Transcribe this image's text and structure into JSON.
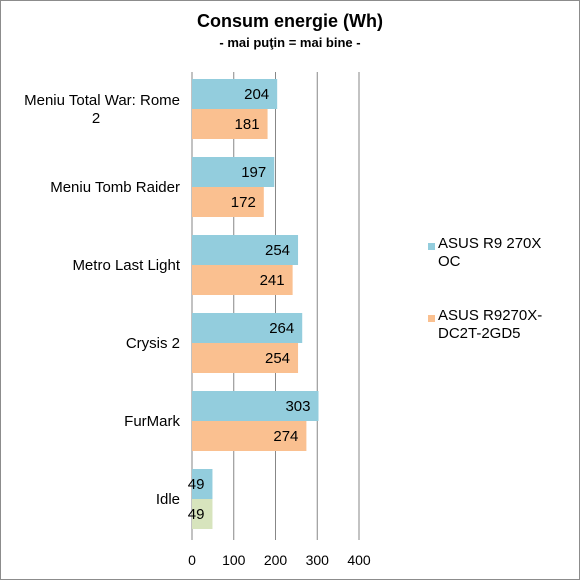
{
  "chart_data": {
    "type": "bar",
    "orientation": "horizontal",
    "title": "Consum energie (Wh)",
    "subtitle": "- mai puţin = mai bine -",
    "categories": [
      [
        "Meniu Total War: Rome",
        "2"
      ],
      [
        "Meniu Tomb Raider"
      ],
      [
        "Metro Last Light"
      ],
      [
        "Crysis 2"
      ],
      [
        "FurMark"
      ],
      [
        "Idle"
      ]
    ],
    "series": [
      {
        "name": [
          "ASUS R9 270X",
          "OC"
        ],
        "color": "#93cddd",
        "values": [
          204,
          197,
          254,
          264,
          303,
          49
        ]
      },
      {
        "name": [
          "ASUS R9270X-",
          "DC2T-2GD5"
        ],
        "color": "#fac090",
        "values": [
          181,
          172,
          241,
          254,
          274,
          49
        ]
      }
    ],
    "point_colors": {
      "1-5": "#d7e4bd"
    },
    "xlim": [
      0,
      400
    ],
    "xticks": [
      0,
      100,
      200,
      300,
      400
    ],
    "grid": "vertical",
    "legend_position": "right"
  }
}
